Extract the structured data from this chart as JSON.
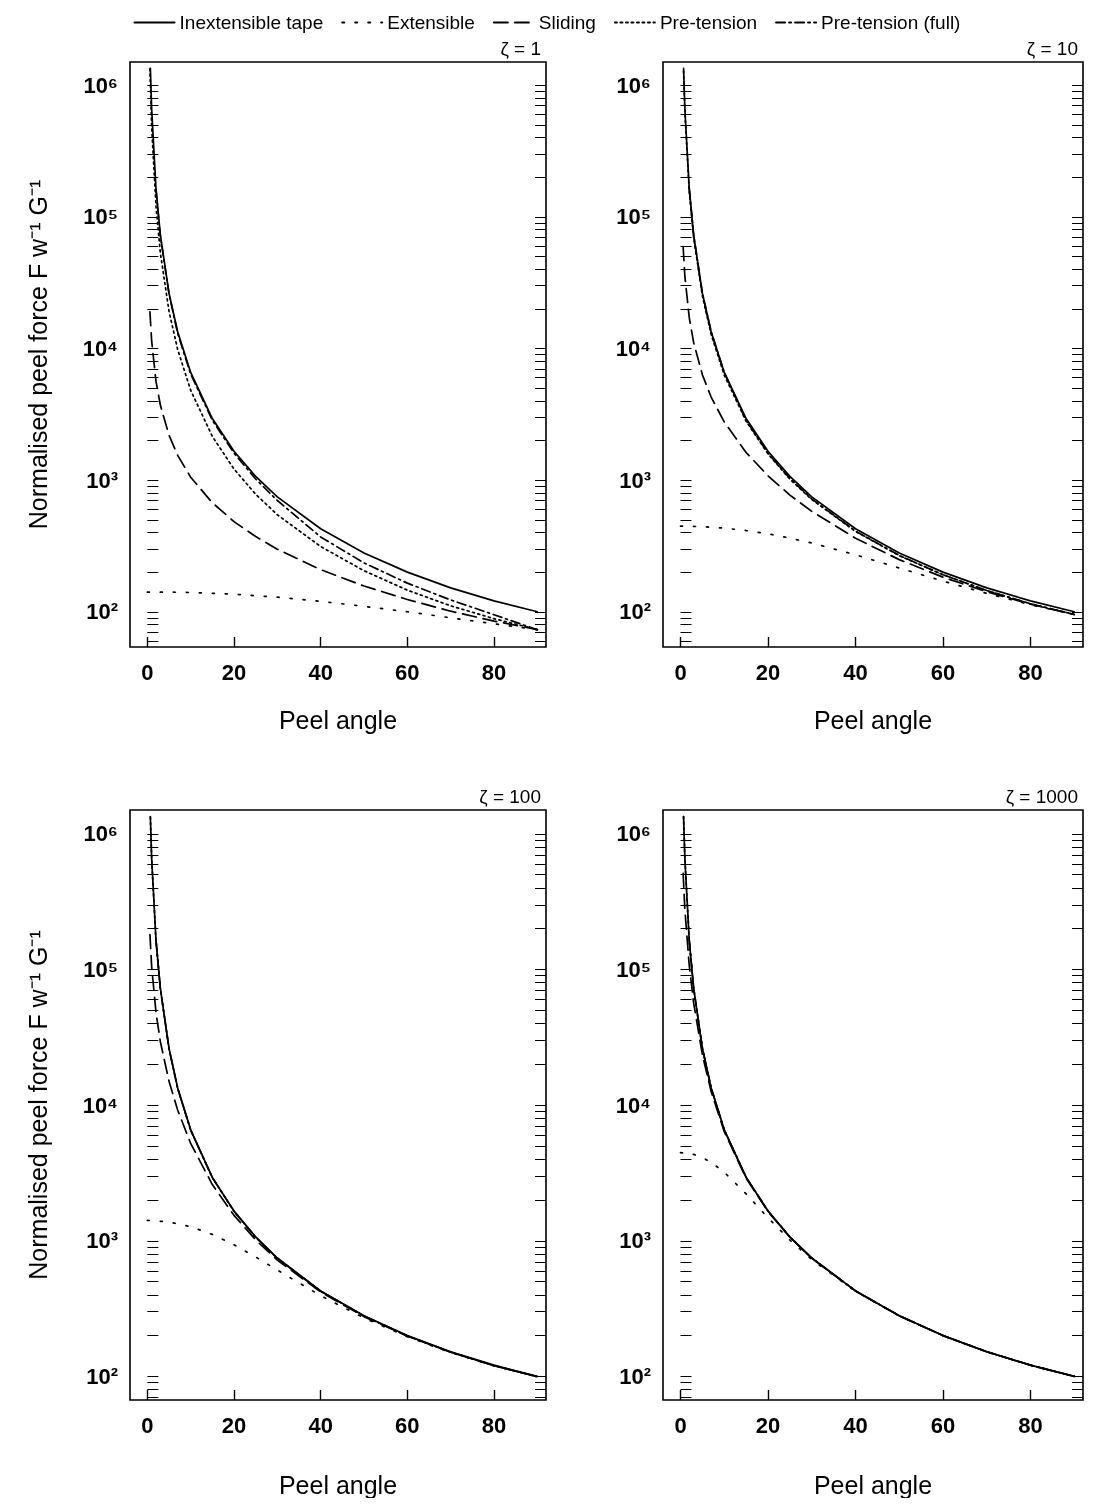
{
  "chart_data": [
    {
      "type": "line",
      "title": "ζ = 1",
      "xlabel": "Peel angle",
      "ylabel": "Normalised peel force F w⁻¹ G⁻¹",
      "legend": "top",
      "log": true,
      "xlim": [
        -4,
        92
      ],
      "xticks": [
        0,
        20,
        40,
        60,
        80
      ],
      "ylim": [
        54,
        1500000
      ],
      "yticks": [
        {
          "value": 60,
          "label": null
        },
        {
          "value": 70,
          "label": null
        },
        {
          "value": 80,
          "label": null
        },
        {
          "value": 90,
          "label": null
        },
        {
          "value": 100,
          "label": "10²"
        },
        {
          "value": 200,
          "label": null
        },
        {
          "value": 300,
          "label": null
        },
        {
          "value": 400,
          "label": null
        },
        {
          "value": 500,
          "label": null
        },
        {
          "value": 600,
          "label": null
        },
        {
          "value": 700,
          "label": null
        },
        {
          "value": 800,
          "label": null
        },
        {
          "value": 900,
          "label": null
        },
        {
          "value": 1000,
          "label": "10³"
        },
        {
          "value": 2000,
          "label": null
        },
        {
          "value": 3000,
          "label": null
        },
        {
          "value": 4000,
          "label": null
        },
        {
          "value": 5000,
          "label": null
        },
        {
          "value": 6000,
          "label": null
        },
        {
          "value": 7000,
          "label": null
        },
        {
          "value": 8000,
          "label": null
        },
        {
          "value": 9000,
          "label": null
        },
        {
          "value": 10000,
          "label": "10⁴"
        },
        {
          "value": 20000,
          "label": null
        },
        {
          "value": 30000,
          "label": null
        },
        {
          "value": 40000,
          "label": null
        },
        {
          "value": 50000,
          "label": null
        },
        {
          "value": 60000,
          "label": null
        },
        {
          "value": 70000,
          "label": null
        },
        {
          "value": 80000,
          "label": null
        },
        {
          "value": 90000,
          "label": null
        },
        {
          "value": 100000,
          "label": "10⁵"
        },
        {
          "value": 200000,
          "label": null
        },
        {
          "value": 300000,
          "label": null
        },
        {
          "value": 400000,
          "label": null
        },
        {
          "value": 500000,
          "label": null
        },
        {
          "value": 600000,
          "label": null
        },
        {
          "value": 700000,
          "label": null
        },
        {
          "value": 800000,
          "label": null
        },
        {
          "value": 900000,
          "label": null
        },
        {
          "value": 1000000,
          "label": "10⁶"
        }
      ],
      "series": [
        {
          "name": "Inextensible tape",
          "color": "#000000",
          "line_style": "solid",
          "x": [
            0.7,
            1,
            2,
            3,
            5,
            7,
            10,
            15,
            20,
            25,
            30,
            40,
            50,
            60,
            70,
            80,
            90
          ],
          "values": [
            1340000,
            657000,
            164000,
            73000,
            26300,
            13400,
            6580,
            2935,
            1658,
            1067,
            746,
            427,
            280,
            200,
            152,
            121,
            100
          ]
        },
        {
          "name": "Extensible",
          "color": "#000000",
          "line_style": "loosely dotted",
          "x": [
            0,
            5,
            10,
            20,
            30,
            40,
            50,
            60,
            70,
            80,
            90
          ],
          "values": [
            141,
            141,
            140,
            136,
            129,
            120,
            110,
            100,
            90,
            81,
            73
          ]
        },
        {
          "name": "Sliding",
          "color": "#000000",
          "line_style": "dashed",
          "x": [
            0.6,
            1,
            2,
            3,
            5,
            7,
            10,
            15,
            20,
            25,
            30,
            40,
            50,
            60,
            70,
            80,
            90
          ],
          "values": [
            19000,
            11360,
            5631,
            3721,
            2195,
            1541,
            1052,
            673,
            484,
            373,
            299,
            209,
            157,
            124,
            101,
            85,
            73.2
          ]
        },
        {
          "name": "Pre-tension",
          "color": "#000000",
          "line_style": "dotted",
          "x": [
            0.6,
            1,
            2,
            3,
            5,
            7,
            10,
            15,
            20,
            25,
            30,
            40,
            50,
            60,
            70,
            80,
            90
          ],
          "values": [
            1335000,
            481000,
            120000,
            53400,
            19200,
            9820,
            4820,
            2148,
            1214,
            781,
            546,
            313,
            205,
            146,
            111,
            88.6,
            73.2
          ]
        },
        {
          "name": "Pre-tension (full)",
          "color": "#000000",
          "line_style": "dashdot",
          "x": [
            2,
            3,
            5,
            7,
            10,
            15,
            20,
            25,
            30,
            40,
            50,
            60,
            70,
            80,
            90
          ],
          "values": [
            160000,
            72000,
            26000,
            13000,
            6400,
            2850,
            1600,
            1020,
            700,
            370,
            235,
            165,
            123,
            95,
            73
          ]
        }
      ]
    },
    {
      "type": "line",
      "title": "ζ = 10",
      "xlabel": "Peel angle",
      "log": true,
      "xlim": [
        -4,
        92
      ],
      "xticks": [
        0,
        20,
        40,
        60,
        80
      ],
      "ylim": [
        54,
        1500000
      ],
      "yticks": [
        {
          "value": 60,
          "label": null
        },
        {
          "value": 70,
          "label": null
        },
        {
          "value": 80,
          "label": null
        },
        {
          "value": 90,
          "label": null
        },
        {
          "value": 100,
          "label": "10²"
        },
        {
          "value": 200,
          "label": null
        },
        {
          "value": 300,
          "label": null
        },
        {
          "value": 400,
          "label": null
        },
        {
          "value": 500,
          "label": null
        },
        {
          "value": 600,
          "label": null
        },
        {
          "value": 700,
          "label": null
        },
        {
          "value": 800,
          "label": null
        },
        {
          "value": 900,
          "label": null
        },
        {
          "value": 1000,
          "label": "10³"
        },
        {
          "value": 2000,
          "label": null
        },
        {
          "value": 3000,
          "label": null
        },
        {
          "value": 4000,
          "label": null
        },
        {
          "value": 5000,
          "label": null
        },
        {
          "value": 6000,
          "label": null
        },
        {
          "value": 7000,
          "label": null
        },
        {
          "value": 8000,
          "label": null
        },
        {
          "value": 9000,
          "label": null
        },
        {
          "value": 10000,
          "label": "10⁴"
        },
        {
          "value": 20000,
          "label": null
        },
        {
          "value": 30000,
          "label": null
        },
        {
          "value": 40000,
          "label": null
        },
        {
          "value": 50000,
          "label": null
        },
        {
          "value": 60000,
          "label": null
        },
        {
          "value": 70000,
          "label": null
        },
        {
          "value": 80000,
          "label": null
        },
        {
          "value": 90000,
          "label": null
        },
        {
          "value": 100000,
          "label": "10⁵"
        },
        {
          "value": 200000,
          "label": null
        },
        {
          "value": 300000,
          "label": null
        },
        {
          "value": 400000,
          "label": null
        },
        {
          "value": 500000,
          "label": null
        },
        {
          "value": 600000,
          "label": null
        },
        {
          "value": 700000,
          "label": null
        },
        {
          "value": 800000,
          "label": null
        },
        {
          "value": 900000,
          "label": null
        },
        {
          "value": 1000000,
          "label": "10⁶"
        }
      ],
      "series": [
        {
          "name": "Inextensible tape",
          "color": "#000000",
          "line_style": "solid",
          "x": [
            0.7,
            1,
            2,
            3,
            5,
            7,
            10,
            15,
            20,
            25,
            30,
            40,
            50,
            60,
            70,
            80,
            90
          ],
          "values": [
            1340000,
            657000,
            164000,
            73000,
            26300,
            13400,
            6580,
            2935,
            1658,
            1067,
            746,
            427,
            280,
            200,
            152,
            121,
            100
          ]
        },
        {
          "name": "Extensible",
          "color": "#000000",
          "line_style": "loosely dotted",
          "x": [
            0,
            5,
            10,
            15,
            20,
            25,
            30,
            40,
            50,
            60,
            70,
            80,
            90
          ],
          "values": [
            447,
            443,
            432,
            414,
            391,
            363,
            333,
            271,
            215,
            171,
            138,
            113,
            95.4
          ]
        },
        {
          "name": "Sliding",
          "color": "#000000",
          "line_style": "dashed",
          "x": [
            0.6,
            1,
            2,
            3,
            5,
            7,
            10,
            15,
            20,
            25,
            30,
            40,
            50,
            60,
            70,
            80,
            90
          ],
          "values": [
            59400,
            35250,
            17150,
            11120,
            6318,
            4276,
            2764,
            1621,
            1078,
            770,
            579,
            362,
            249,
            183,
            142,
            114,
            95.4
          ]
        },
        {
          "name": "Pre-tension",
          "color": "#000000",
          "line_style": "dotted",
          "x": [
            0.7,
            1,
            2,
            3,
            5,
            7,
            10,
            15,
            20,
            25,
            30,
            40,
            50,
            60,
            70,
            80,
            90
          ],
          "values": [
            1280000,
            626000,
            157000,
            69600,
            25100,
            12800,
            6280,
            2800,
            1582,
            1018,
            712,
            408,
            267,
            191,
            145,
            115,
            95.4
          ]
        },
        {
          "name": "Pre-tension (full)",
          "color": "#000000",
          "line_style": "dashdot",
          "x": [
            2,
            3,
            5,
            7,
            10,
            15,
            20,
            25,
            30,
            40,
            50,
            60,
            70,
            80,
            90
          ],
          "values": [
            164000,
            73000,
            26300,
            13400,
            6580,
            2850,
            1600,
            1030,
            720,
            410,
            268,
            191,
            145,
            115,
            95.4
          ]
        }
      ]
    },
    {
      "type": "line",
      "title": "ζ = 100",
      "xlabel": "Peel angle",
      "ylabel": "Normalised peel force F w⁻¹ G⁻¹",
      "log": true,
      "xlim": [
        -4,
        92
      ],
      "xticks": [
        0,
        20,
        40,
        60,
        80
      ],
      "ylim": [
        67,
        1500000
      ],
      "yticks": [
        {
          "value": 70,
          "label": null
        },
        {
          "value": 80,
          "label": null
        },
        {
          "value": 90,
          "label": null
        },
        {
          "value": 100,
          "label": "10²"
        },
        {
          "value": 200,
          "label": null
        },
        {
          "value": 300,
          "label": null
        },
        {
          "value": 400,
          "label": null
        },
        {
          "value": 500,
          "label": null
        },
        {
          "value": 600,
          "label": null
        },
        {
          "value": 700,
          "label": null
        },
        {
          "value": 800,
          "label": null
        },
        {
          "value": 900,
          "label": null
        },
        {
          "value": 1000,
          "label": "10³"
        },
        {
          "value": 2000,
          "label": null
        },
        {
          "value": 3000,
          "label": null
        },
        {
          "value": 4000,
          "label": null
        },
        {
          "value": 5000,
          "label": null
        },
        {
          "value": 6000,
          "label": null
        },
        {
          "value": 7000,
          "label": null
        },
        {
          "value": 8000,
          "label": null
        },
        {
          "value": 9000,
          "label": null
        },
        {
          "value": 10000,
          "label": "10⁴"
        },
        {
          "value": 20000,
          "label": null
        },
        {
          "value": 30000,
          "label": null
        },
        {
          "value": 40000,
          "label": null
        },
        {
          "value": 50000,
          "label": null
        },
        {
          "value": 60000,
          "label": null
        },
        {
          "value": 70000,
          "label": null
        },
        {
          "value": 80000,
          "label": null
        },
        {
          "value": 90000,
          "label": null
        },
        {
          "value": 100000,
          "label": "10⁵"
        },
        {
          "value": 200000,
          "label": null
        },
        {
          "value": 300000,
          "label": null
        },
        {
          "value": 400000,
          "label": null
        },
        {
          "value": 500000,
          "label": null
        },
        {
          "value": 600000,
          "label": null
        },
        {
          "value": 700000,
          "label": null
        },
        {
          "value": 800000,
          "label": null
        },
        {
          "value": 900000,
          "label": null
        },
        {
          "value": 1000000,
          "label": "10⁶"
        }
      ],
      "series": [
        {
          "name": "Inextensible tape",
          "color": "#000000",
          "line_style": "solid",
          "x": [
            0.7,
            1,
            2,
            3,
            5,
            7,
            10,
            15,
            20,
            25,
            30,
            40,
            50,
            60,
            70,
            80,
            90
          ],
          "values": [
            1340000,
            657000,
            164000,
            73000,
            26300,
            13400,
            6580,
            2935,
            1658,
            1067,
            746,
            427,
            280,
            200,
            152,
            121,
            100
          ]
        },
        {
          "name": "Extensible",
          "color": "#000000",
          "line_style": "loosely dotted",
          "x": [
            0,
            5,
            10,
            15,
            20,
            25,
            30,
            40,
            50,
            60,
            70,
            80,
            90
          ],
          "values": [
            1414,
            1377,
            1270,
            1114,
            934,
            760,
            608,
            394,
            270,
            196,
            150,
            120,
            99.5
          ]
        },
        {
          "name": "Sliding",
          "color": "#000000",
          "line_style": "dashed",
          "x": [
            0.6,
            1,
            2,
            3,
            5,
            7,
            10,
            15,
            20,
            25,
            30,
            40,
            50,
            60,
            70,
            80,
            90
          ],
          "values": [
            181000,
            105000,
            48160,
            29490,
            15010,
            9192,
            5220,
            2598,
            1540,
            1016,
            720,
            419,
            276,
            198,
            151,
            120,
            99.5
          ]
        },
        {
          "name": "Pre-tension",
          "color": "#000000",
          "line_style": "dotted",
          "x": [
            0.7,
            1,
            2,
            3,
            5,
            7,
            10,
            15,
            20,
            25,
            30,
            40,
            50,
            60,
            70,
            80,
            90
          ],
          "values": [
            1330000,
            653000,
            163000,
            72600,
            26100,
            13300,
            6550,
            2920,
            1650,
            1062,
            743,
            425,
            279,
            199,
            151,
            120,
            99.5
          ]
        },
        {
          "name": "Pre-tension (full)",
          "color": "#000000",
          "line_style": "dashdot",
          "x": [
            2,
            3,
            5,
            7,
            10,
            15,
            20,
            25,
            30,
            40,
            50,
            60,
            70,
            80,
            90
          ],
          "values": [
            163000,
            72600,
            26100,
            13300,
            6550,
            2920,
            1650,
            1062,
            743,
            425,
            279,
            199,
            151,
            120,
            99.5
          ]
        }
      ]
    },
    {
      "type": "line",
      "title": "ζ = 1000",
      "xlabel": "Peel angle",
      "log": true,
      "xlim": [
        -4,
        92
      ],
      "xticks": [
        0,
        20,
        40,
        60,
        80
      ],
      "ylim": [
        67,
        1500000
      ],
      "yticks": [
        {
          "value": 70,
          "label": null
        },
        {
          "value": 80,
          "label": null
        },
        {
          "value": 90,
          "label": null
        },
        {
          "value": 100,
          "label": "10²"
        },
        {
          "value": 200,
          "label": null
        },
        {
          "value": 300,
          "label": null
        },
        {
          "value": 400,
          "label": null
        },
        {
          "value": 500,
          "label": null
        },
        {
          "value": 600,
          "label": null
        },
        {
          "value": 700,
          "label": null
        },
        {
          "value": 800,
          "label": null
        },
        {
          "value": 900,
          "label": null
        },
        {
          "value": 1000,
          "label": "10³"
        },
        {
          "value": 2000,
          "label": null
        },
        {
          "value": 3000,
          "label": null
        },
        {
          "value": 4000,
          "label": null
        },
        {
          "value": 5000,
          "label": null
        },
        {
          "value": 6000,
          "label": null
        },
        {
          "value": 7000,
          "label": null
        },
        {
          "value": 8000,
          "label": null
        },
        {
          "value": 9000,
          "label": null
        },
        {
          "value": 10000,
          "label": "10⁴"
        },
        {
          "value": 20000,
          "label": null
        },
        {
          "value": 30000,
          "label": null
        },
        {
          "value": 40000,
          "label": null
        },
        {
          "value": 50000,
          "label": null
        },
        {
          "value": 60000,
          "label": null
        },
        {
          "value": 70000,
          "label": null
        },
        {
          "value": 80000,
          "label": null
        },
        {
          "value": 90000,
          "label": null
        },
        {
          "value": 100000,
          "label": "10⁵"
        },
        {
          "value": 200000,
          "label": null
        },
        {
          "value": 300000,
          "label": null
        },
        {
          "value": 400000,
          "label": null
        },
        {
          "value": 500000,
          "label": null
        },
        {
          "value": 600000,
          "label": null
        },
        {
          "value": 700000,
          "label": null
        },
        {
          "value": 800000,
          "label": null
        },
        {
          "value": 900000,
          "label": null
        },
        {
          "value": 1000000,
          "label": "10⁶"
        }
      ],
      "series": [
        {
          "name": "Inextensible tape",
          "color": "#000000",
          "line_style": "solid",
          "x": [
            0.7,
            1,
            2,
            3,
            5,
            7,
            10,
            15,
            20,
            25,
            30,
            40,
            50,
            60,
            70,
            80,
            90
          ],
          "values": [
            1340000,
            657000,
            164000,
            73000,
            26300,
            13400,
            6580,
            2935,
            1658,
            1067,
            746,
            427,
            280,
            200,
            152,
            121,
            100
          ]
        },
        {
          "name": "Extensible",
          "color": "#000000",
          "line_style": "loosely dotted",
          "x": [
            0,
            3,
            5,
            7,
            10,
            15,
            20,
            25,
            30,
            40,
            50,
            60,
            70,
            80,
            90
          ],
          "values": [
            4472,
            4337,
            4108,
            3788,
            3204,
            2215,
            1477,
            1013,
            727,
            424,
            279,
            200,
            152,
            121,
            100
          ]
        },
        {
          "name": "Sliding",
          "color": "#000000",
          "line_style": "dashed",
          "x": [
            0.6,
            1,
            2,
            3,
            5,
            7,
            10,
            15,
            20,
            25,
            30,
            40,
            50,
            60,
            70,
            80,
            90
          ],
          "values": [
            512000,
            275900,
            107000,
            56820,
            23520,
            12620,
            6379,
            2893,
            1645,
            1062,
            744,
            427,
            280,
            200,
            152,
            121,
            100
          ]
        },
        {
          "name": "Pre-tension",
          "color": "#000000",
          "line_style": "dotted",
          "x": [
            0.7,
            1,
            2,
            3,
            5,
            7,
            10,
            15,
            20,
            25,
            30,
            40,
            50,
            60,
            70,
            80,
            90
          ],
          "values": [
            1340000,
            657000,
            164000,
            73000,
            26300,
            13400,
            6580,
            2935,
            1658,
            1067,
            746,
            427,
            280,
            200,
            152,
            121,
            100
          ]
        },
        {
          "name": "Pre-tension (full)",
          "color": "#000000",
          "line_style": "dashdot",
          "x": [
            2,
            3,
            5,
            7,
            10,
            15,
            20,
            25,
            30,
            40,
            50,
            60,
            70,
            80,
            90
          ],
          "values": [
            164000,
            73000,
            26300,
            13400,
            6580,
            2935,
            1658,
            1067,
            746,
            427,
            280,
            200,
            152,
            121,
            100
          ]
        }
      ]
    }
  ]
}
